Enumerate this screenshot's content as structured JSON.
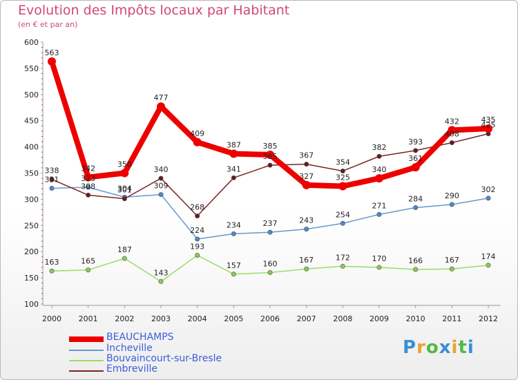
{
  "header": {
    "title": "Evolution des Impôts locaux par Habitant",
    "subtitle": "(en € et par an)"
  },
  "chart_data": {
    "type": "line",
    "title": "Evolution des Impôts locaux par Habitant",
    "subtitle": "(en € et par an)",
    "xlabel": "",
    "ylabel": "",
    "ylim": [
      100,
      600
    ],
    "yticks": [
      100,
      150,
      200,
      250,
      300,
      350,
      400,
      450,
      500,
      550,
      600
    ],
    "grid": false,
    "legend_position": "bottom-left",
    "x": [
      "2000",
      "2001",
      "2002",
      "2003",
      "2004",
      "2005",
      "2006",
      "2007",
      "2008",
      "2009",
      "2010",
      "2011",
      "2012"
    ],
    "series": [
      {
        "name": "Bouvaincourt-sur-Bresle",
        "color": "#99dd66",
        "marker": "#88cc55",
        "values": [
          163,
          165,
          187,
          143,
          193,
          157,
          160,
          167,
          172,
          170,
          166,
          167,
          174
        ]
      },
      {
        "name": "Incheville",
        "color": "#6699cc",
        "marker": "#4d88cc",
        "values": [
          321,
          323,
          304,
          309,
          224,
          234,
          237,
          243,
          254,
          271,
          284,
          290,
          302
        ]
      },
      {
        "name": "Embreville",
        "color": "#7a2424",
        "marker": "#661c1c",
        "values": [
          338,
          308,
          301,
          340,
          268,
          341,
          365,
          367,
          354,
          382,
          393,
          408,
          425
        ]
      },
      {
        "name": "BEAUCHAMPS",
        "color": "#ee0000",
        "marker": "#ee0000",
        "values": [
          563,
          342,
          350,
          477,
          409,
          387,
          385,
          327,
          325,
          340,
          361,
          432,
          435
        ]
      }
    ],
    "legend": [
      "BEAUCHAMPS",
      "Incheville",
      "Bouvaincourt-sur-Bresle",
      "Embreville"
    ]
  },
  "branding": {
    "logo_letters": [
      "P",
      "r",
      "o",
      "x",
      "i",
      "t",
      "i"
    ],
    "logo_colors": [
      "#3a8fd6",
      "#e8a32e",
      "#56b848",
      "#3a8fd6",
      "#e8a32e",
      "#56b848",
      "#3a8fd6"
    ]
  }
}
